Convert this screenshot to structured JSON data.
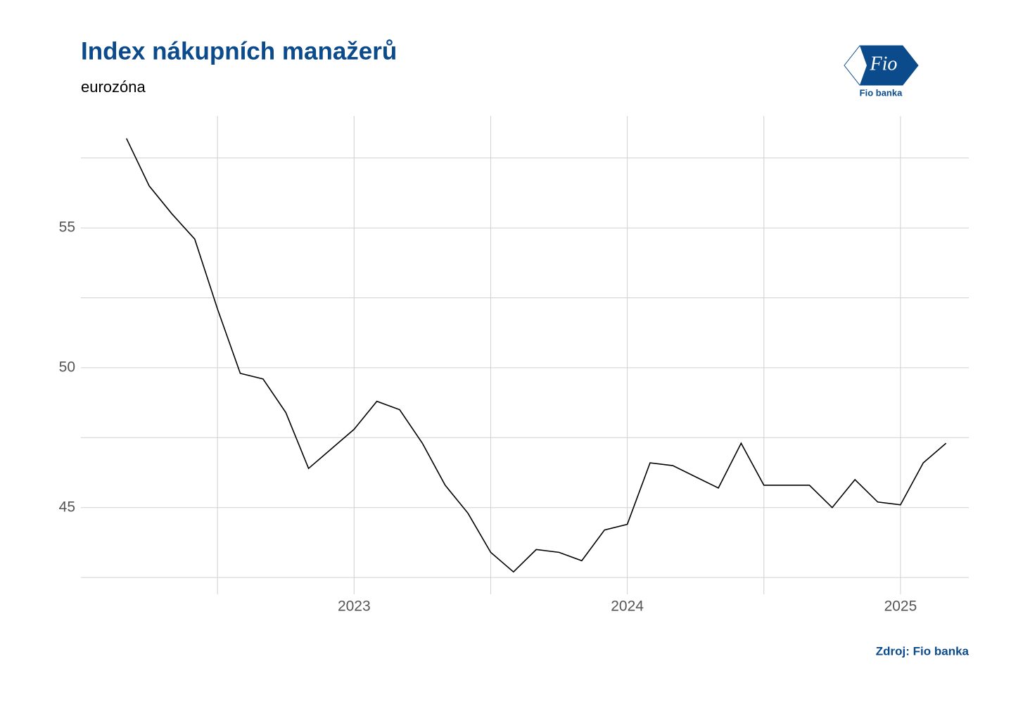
{
  "chart_data": {
    "type": "line",
    "title": "Index nákupních manažerů",
    "subtitle": "eurozóna",
    "source": "Zdroj: Fio banka",
    "logo": {
      "mark": "Fio",
      "name": "Fio banka"
    },
    "color": "#000000",
    "x": [
      "2022-03",
      "2022-04",
      "2022-05",
      "2022-06",
      "2022-07",
      "2022-08",
      "2022-09",
      "2022-10",
      "2022-11",
      "2022-12",
      "2023-01",
      "2023-02",
      "2023-03",
      "2023-04",
      "2023-05",
      "2023-06",
      "2023-07",
      "2023-08",
      "2023-09",
      "2023-10",
      "2023-11",
      "2023-12",
      "2024-01",
      "2024-02",
      "2024-03",
      "2024-04",
      "2024-05",
      "2024-06",
      "2024-07",
      "2024-08",
      "2024-09",
      "2024-10",
      "2024-11",
      "2024-12",
      "2025-01",
      "2025-02",
      "2025-03"
    ],
    "values": [
      58.2,
      56.5,
      55.5,
      54.6,
      52.1,
      49.8,
      49.6,
      48.4,
      46.4,
      47.1,
      47.8,
      48.8,
      48.5,
      47.3,
      45.8,
      44.8,
      43.4,
      42.7,
      43.5,
      43.4,
      43.1,
      44.2,
      44.4,
      46.6,
      46.5,
      46.1,
      45.7,
      47.3,
      45.8,
      45.8,
      45.8,
      45.0,
      46.0,
      45.2,
      45.1,
      46.6,
      47.3
    ],
    "xlim": [
      "2022-01",
      "2025-04"
    ],
    "xticks": [
      {
        "value": "2023-01",
        "label": "2023"
      },
      {
        "value": "2024-01",
        "label": "2024"
      },
      {
        "value": "2025-01",
        "label": "2025"
      }
    ],
    "xminor": [
      "2022-07",
      "2023-07",
      "2024-07"
    ],
    "ylim": [
      41.9,
      59.0
    ],
    "yticks": [
      45,
      50,
      55
    ],
    "yminor": [
      42.5,
      47.5,
      52.5,
      57.5
    ],
    "grid": true
  }
}
